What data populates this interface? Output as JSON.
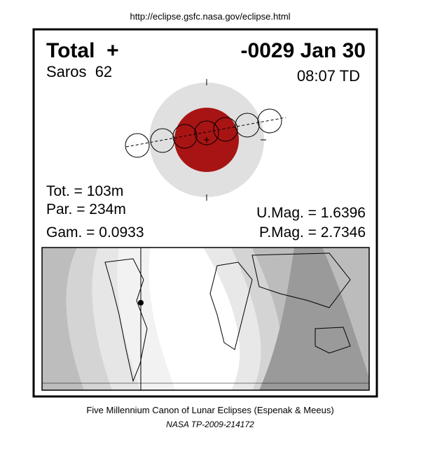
{
  "header": {
    "url": "http://eclipse.gsfc.nasa.gov/eclipse.html"
  },
  "eclipse": {
    "type": "Total  +",
    "date": "-0029 Jan 30",
    "saros": "Saros  62",
    "time": "08:07 TD",
    "total_duration": "Tot. = 103m",
    "partial_duration": "Par. = 234m",
    "gamma": "Gam. = 0.0933",
    "umbral_magnitude": "U.Mag. = 1.6396",
    "penumbral_magnitude": "P.Mag. = 2.7346"
  },
  "footer": {
    "canon": "Five Millennium Canon of Lunar Eclipses (Espenak & Meeus)",
    "reference": "NASA TP-2009-214172"
  }
}
